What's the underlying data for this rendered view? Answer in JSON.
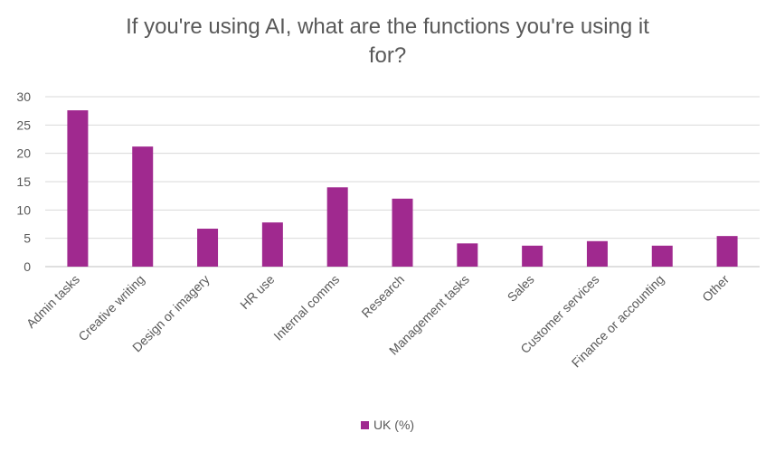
{
  "chart_data": {
    "type": "bar",
    "title_lines": [
      "If you're using AI, what are the functions you're using it",
      "for?"
    ],
    "categories": [
      "Admin tasks",
      "Creative writing",
      "Design or imagery",
      "HR use",
      "Internal comms",
      "Research",
      "Management tasks",
      "Sales",
      "Customer services",
      "Finance or accounting",
      "Other"
    ],
    "series": [
      {
        "name": "UK (%)",
        "color": "#A0298F",
        "values": [
          27.6,
          21.2,
          6.7,
          7.8,
          14.0,
          12.0,
          4.1,
          3.7,
          4.5,
          3.7,
          5.4
        ]
      }
    ],
    "ylim": [
      0,
      30
    ],
    "yticks": [
      0,
      5,
      10,
      15,
      20,
      25,
      30
    ],
    "grid": true,
    "legend_position": "bottom"
  }
}
